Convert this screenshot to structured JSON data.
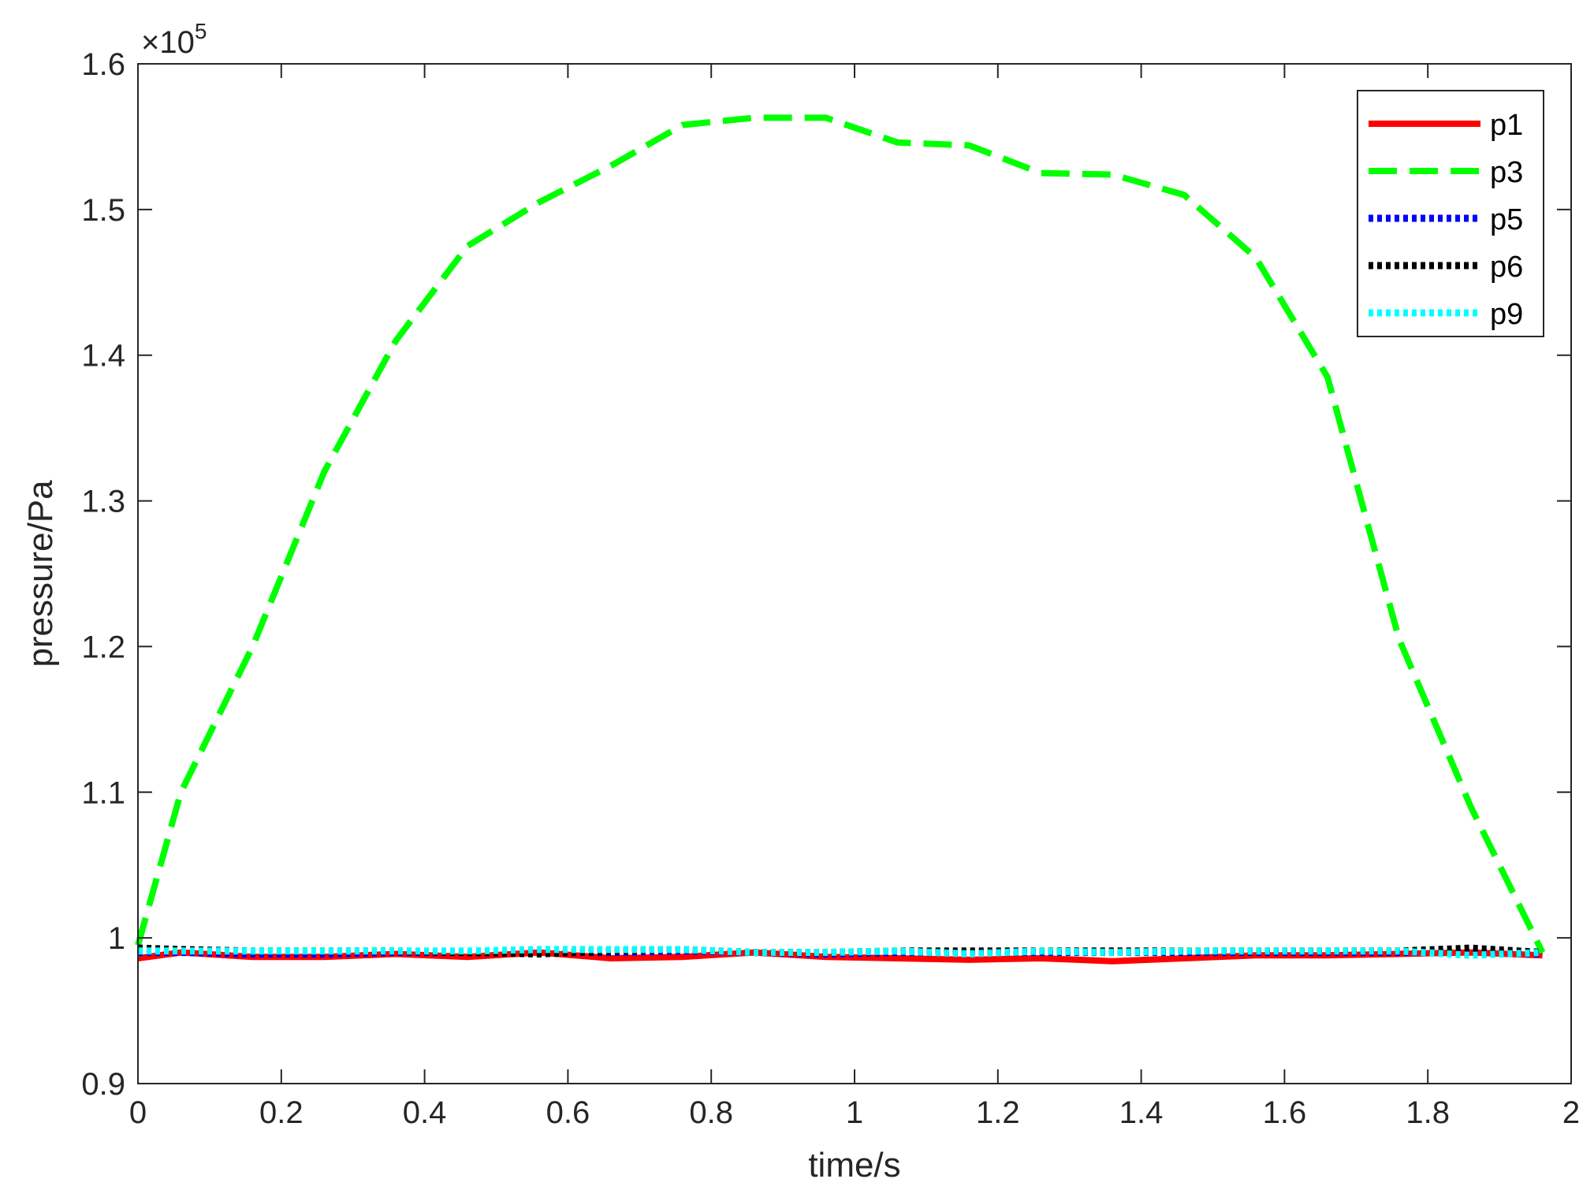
{
  "chart_data": {
    "type": "line",
    "title": "",
    "xlabel": "time/s",
    "ylabel": "pressure/Pa",
    "xlim": [
      0,
      2
    ],
    "ylim": [
      0.9,
      1.6
    ],
    "y_exponent_label": "×10",
    "y_exponent_power": "5",
    "x_ticks": [
      0,
      0.2,
      0.4,
      0.6,
      0.8,
      1,
      1.2,
      1.4,
      1.6,
      1.8,
      2
    ],
    "x_tick_labels": [
      "0",
      "0.2",
      "0.4",
      "0.6",
      "0.8",
      "1",
      "1.2",
      "1.4",
      "1.6",
      "1.8",
      "2"
    ],
    "y_ticks": [
      0.9,
      1.0,
      1.1,
      1.2,
      1.3,
      1.4,
      1.5,
      1.6
    ],
    "y_tick_labels": [
      "0.9",
      "1",
      "1.1",
      "1.2",
      "1.3",
      "1.4",
      "1.5",
      "1.6"
    ],
    "grid": false,
    "legend_position": "top-right",
    "series": [
      {
        "name": "p1",
        "color": "#ff0000",
        "dash": "solid",
        "x": [
          0,
          0.06,
          0.16,
          0.26,
          0.36,
          0.46,
          0.56,
          0.66,
          0.76,
          0.86,
          0.96,
          1.06,
          1.16,
          1.26,
          1.36,
          1.46,
          1.56,
          1.66,
          1.76,
          1.86,
          1.96
        ],
        "y": [
          0.986,
          0.99,
          0.987,
          0.987,
          0.989,
          0.987,
          0.99,
          0.986,
          0.987,
          0.99,
          0.987,
          0.986,
          0.985,
          0.986,
          0.984,
          0.986,
          0.988,
          0.988,
          0.989,
          0.99,
          0.988
        ]
      },
      {
        "name": "p3",
        "color": "#00ff00",
        "dash": "dashed",
        "x": [
          0,
          0.06,
          0.16,
          0.26,
          0.36,
          0.46,
          0.56,
          0.66,
          0.76,
          0.86,
          0.96,
          1.06,
          1.16,
          1.26,
          1.36,
          1.46,
          1.56,
          1.66,
          1.76,
          1.86,
          1.96
        ],
        "y": [
          0.995,
          1.1,
          1.2,
          1.32,
          1.41,
          1.475,
          1.505,
          1.53,
          1.558,
          1.563,
          1.563,
          1.546,
          1.544,
          1.525,
          1.524,
          1.51,
          1.467,
          1.385,
          1.205,
          1.09,
          0.99
        ]
      },
      {
        "name": "p5",
        "color": "#0000ff",
        "dash": "dotted",
        "x": [
          0,
          0.06,
          0.16,
          0.26,
          0.36,
          0.46,
          0.56,
          0.66,
          0.76,
          0.86,
          0.96,
          1.06,
          1.16,
          1.26,
          1.36,
          1.46,
          1.56,
          1.66,
          1.76,
          1.86,
          1.96
        ],
        "y": [
          0.99,
          0.99,
          0.989,
          0.989,
          0.99,
          0.99,
          0.99,
          0.99,
          0.991,
          0.99,
          0.989,
          0.99,
          0.99,
          0.99,
          0.99,
          0.99,
          0.99,
          0.99,
          0.99,
          0.99,
          0.989
        ]
      },
      {
        "name": "p6",
        "color": "#000000",
        "dash": "dotted",
        "x": [
          0,
          0.06,
          0.16,
          0.26,
          0.36,
          0.46,
          0.56,
          0.66,
          0.76,
          0.86,
          0.96,
          1.06,
          1.16,
          1.26,
          1.36,
          1.46,
          1.56,
          1.66,
          1.76,
          1.86,
          1.96
        ],
        "y": [
          0.993,
          0.992,
          0.991,
          0.991,
          0.991,
          0.99,
          0.989,
          0.991,
          0.992,
          0.99,
          0.99,
          0.991,
          0.991,
          0.991,
          0.991,
          0.991,
          0.991,
          0.991,
          0.991,
          0.993,
          0.99
        ]
      },
      {
        "name": "p9",
        "color": "#00ffff",
        "dash": "dotted",
        "x": [
          0,
          0.06,
          0.16,
          0.26,
          0.36,
          0.46,
          0.56,
          0.66,
          0.76,
          0.86,
          0.96,
          1.06,
          1.16,
          1.26,
          1.36,
          1.46,
          1.56,
          1.66,
          1.76,
          1.86,
          1.96
        ],
        "y": [
          0.991,
          0.991,
          0.991,
          0.991,
          0.991,
          0.991,
          0.992,
          0.992,
          0.992,
          0.99,
          0.99,
          0.991,
          0.989,
          0.991,
          0.99,
          0.991,
          0.991,
          0.991,
          0.991,
          0.988,
          0.99
        ]
      }
    ]
  }
}
